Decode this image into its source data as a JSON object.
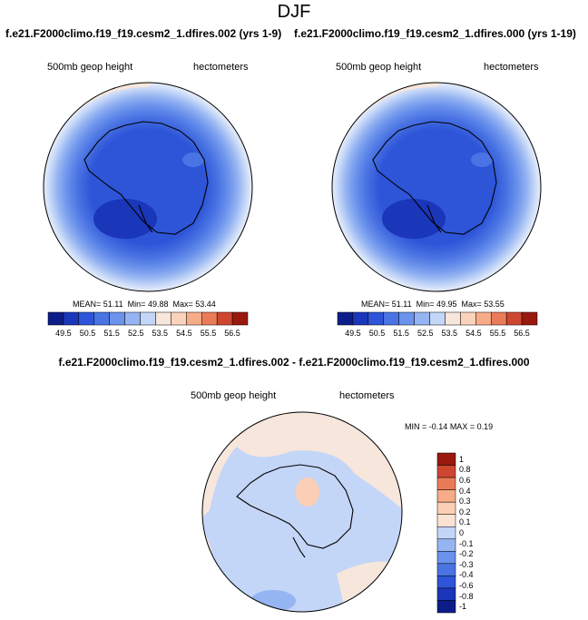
{
  "figure": {
    "title": "DJF",
    "diff_title": "f.e21.F2000climo.f19_f19.cesm2_1.dfires.002 - f.e21.F2000climo.f19_f19.cesm2_1.dfires.000"
  },
  "colors": {
    "palette13": [
      "#0c1d8a",
      "#1a36b9",
      "#2e55d8",
      "#4a74e3",
      "#6b92ec",
      "#95b4f2",
      "#c4d6f7",
      "#f6e6dc",
      "#fbd3bb",
      "#f6ac88",
      "#ea7b58",
      "#cf4630",
      "#99190f"
    ],
    "diff_palette": [
      "#0c1d8a",
      "#1a36b9",
      "#2e55d8",
      "#4a74e3",
      "#6b92ec",
      "#95b4f2",
      "#c4d6f7",
      "#fbe3d3",
      "#fbcfb5",
      "#f6ac88",
      "#ea7b58",
      "#cf4630",
      "#99190f"
    ]
  },
  "chart_data": [
    {
      "type": "heatmap",
      "projection": "south-polar-stereographic",
      "run": "f.e21.F2000climo.f19_f19.cesm2_1.dfires.002 (yrs 1-9)",
      "left_label": "500mb geop height",
      "right_label": "hectometers",
      "stats": {
        "mean": "51.11",
        "min": "49.88",
        "max": "53.44"
      },
      "mean_label": "MEAN=",
      "min_label": "Min=",
      "max_label": "Max=",
      "colorbar_ticks": [
        "49.5",
        "50.5",
        "51.5",
        "52.5",
        "53.5",
        "54.5",
        "55.5",
        "56.5"
      ],
      "levels": [
        49.5,
        50,
        50.5,
        51,
        51.5,
        52,
        52.5,
        53,
        53.5,
        54,
        54.5,
        55,
        55.5,
        56,
        56.5
      ]
    },
    {
      "type": "heatmap",
      "projection": "south-polar-stereographic",
      "run": "f.e21.F2000climo.f19_f19.cesm2_1.dfires.000 (yrs 1-19)",
      "left_label": "500mb geop height",
      "right_label": "hectometers",
      "stats": {
        "mean": "51.11",
        "min": "49.95",
        "max": "53.55"
      },
      "mean_label": "MEAN=",
      "min_label": "Min=",
      "max_label": "Max=",
      "colorbar_ticks": [
        "49.5",
        "50.5",
        "51.5",
        "52.5",
        "53.5",
        "54.5",
        "55.5",
        "56.5"
      ],
      "levels": [
        49.5,
        50,
        50.5,
        51,
        51.5,
        52,
        52.5,
        53,
        53.5,
        54,
        54.5,
        55,
        55.5,
        56,
        56.5
      ]
    },
    {
      "type": "heatmap",
      "projection": "south-polar-stereographic",
      "left_label": "500mb geop height",
      "right_label": "hectometers",
      "stats": {
        "min": "-0.14",
        "max": "0.19"
      },
      "min_label": "MIN =",
      "max_label": "MAX =",
      "colorbar_ticks": [
        "1",
        "0.8",
        "0.6",
        "0.4",
        "0.3",
        "0.2",
        "0.1",
        "0",
        "-0.1",
        "-0.2",
        "-0.3",
        "-0.4",
        "-0.6",
        "-0.8",
        "-1"
      ]
    }
  ]
}
